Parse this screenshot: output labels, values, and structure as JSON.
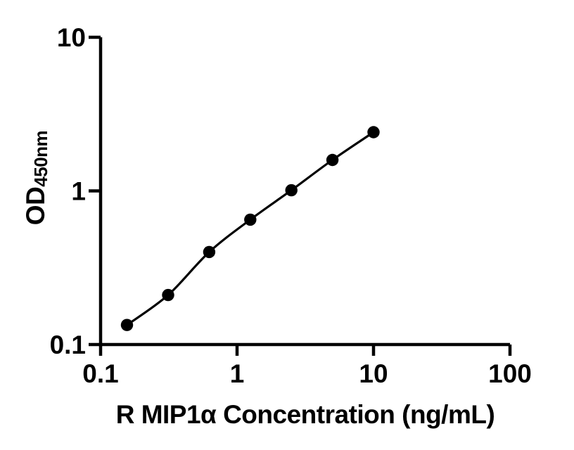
{
  "figure": {
    "background_color": "#ffffff",
    "ink_color": "#000000"
  },
  "chart_data": {
    "type": "scatter",
    "line": "smooth-fit",
    "marker": "filled-circle",
    "xlabel": "R MIP1α Concentration (ng/mL)",
    "ylabel_main": "OD",
    "ylabel_sub": "450nm",
    "xscale": "log",
    "yscale": "log",
    "xlim": [
      0.1,
      100
    ],
    "ylim": [
      0.1,
      10
    ],
    "x_ticks": [
      0.1,
      1,
      10,
      100
    ],
    "x_tick_labels": [
      "0.1",
      "1",
      "10",
      "100"
    ],
    "y_ticks": [
      0.1,
      1,
      10
    ],
    "y_tick_labels": [
      "0.1",
      "1",
      "10"
    ],
    "grid": false,
    "legend": null,
    "points": [
      {
        "x": 0.156,
        "y": 0.134
      },
      {
        "x": 0.3125,
        "y": 0.21
      },
      {
        "x": 0.625,
        "y": 0.4
      },
      {
        "x": 1.25,
        "y": 0.65
      },
      {
        "x": 2.5,
        "y": 1.01
      },
      {
        "x": 5,
        "y": 1.59
      },
      {
        "x": 10,
        "y": 2.41
      }
    ]
  }
}
